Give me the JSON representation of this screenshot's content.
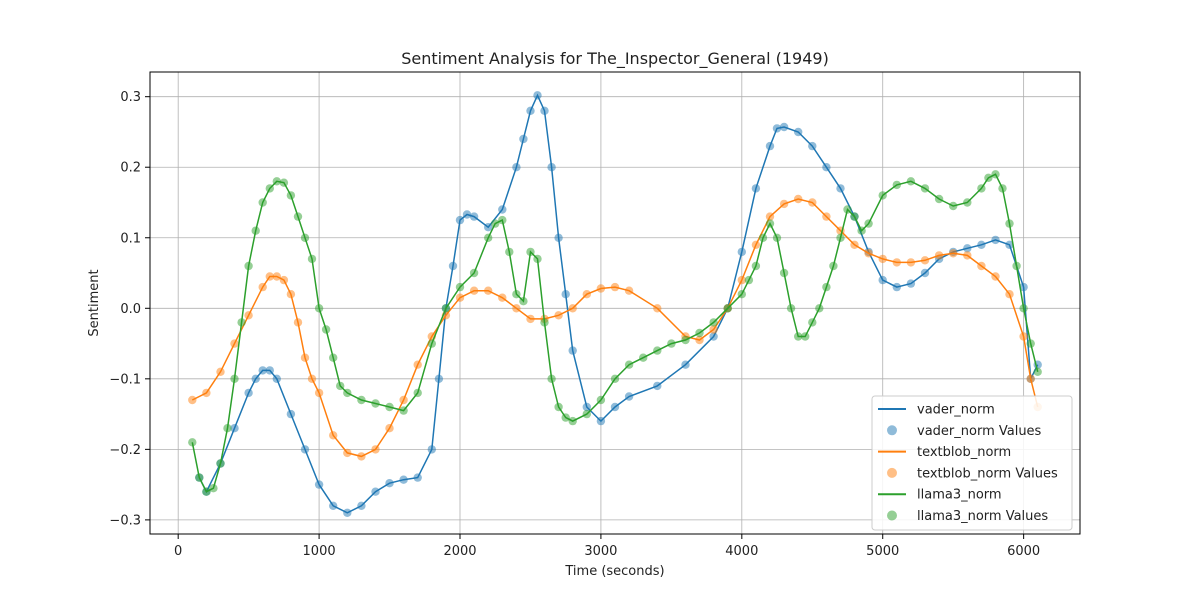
{
  "chart_data": {
    "type": "line",
    "title": "Sentiment Analysis for The_Inspector_General (1949)",
    "xlabel": "Time (seconds)",
    "ylabel": "Sentiment",
    "xlim": [
      -200,
      6400
    ],
    "ylim": [
      -0.32,
      0.335
    ],
    "x_ticks": [
      0,
      1000,
      2000,
      3000,
      4000,
      5000,
      6000
    ],
    "y_ticks": [
      -0.3,
      -0.2,
      -0.1,
      0.0,
      0.1,
      0.2,
      0.3
    ],
    "y_tick_labels": [
      "−0.3",
      "−0.2",
      "−0.1",
      "0.0",
      "0.1",
      "0.2",
      "0.3"
    ],
    "grid": true,
    "legend_position": "bottom-right",
    "legend_entries": [
      {
        "label": "vader_norm",
        "kind": "line",
        "color": "#1f77b4"
      },
      {
        "label": "vader_norm Values",
        "kind": "marker",
        "color": "#1f77b4"
      },
      {
        "label": "textblob_norm",
        "kind": "line",
        "color": "#ff7f0e"
      },
      {
        "label": "textblob_norm Values",
        "kind": "marker",
        "color": "#ff7f0e"
      },
      {
        "label": "llama3_norm",
        "kind": "line",
        "color": "#2ca02c"
      },
      {
        "label": "llama3_norm Values",
        "kind": "marker",
        "color": "#2ca02c"
      }
    ],
    "series": [
      {
        "name": "vader_norm",
        "color": "#1f77b4",
        "x": [
          150,
          200,
          300,
          400,
          500,
          550,
          600,
          650,
          700,
          800,
          900,
          1000,
          1100,
          1200,
          1300,
          1400,
          1500,
          1600,
          1700,
          1800,
          1850,
          1900,
          1950,
          2000,
          2050,
          2100,
          2200,
          2300,
          2400,
          2450,
          2500,
          2550,
          2600,
          2650,
          2700,
          2750,
          2800,
          2900,
          3000,
          3100,
          3200,
          3400,
          3600,
          3800,
          3900,
          4000,
          4100,
          4200,
          4250,
          4300,
          4400,
          4500,
          4600,
          4700,
          4800,
          4900,
          5000,
          5100,
          5200,
          5300,
          5400,
          5500,
          5600,
          5700,
          5800,
          5900,
          6000,
          6050,
          6100
        ],
        "y": [
          -0.24,
          -0.26,
          -0.22,
          -0.17,
          -0.12,
          -0.1,
          -0.088,
          -0.088,
          -0.1,
          -0.15,
          -0.2,
          -0.25,
          -0.28,
          -0.29,
          -0.28,
          -0.26,
          -0.248,
          -0.243,
          -0.24,
          -0.2,
          -0.1,
          0.0,
          0.06,
          0.125,
          0.133,
          0.13,
          0.115,
          0.14,
          0.2,
          0.24,
          0.28,
          0.302,
          0.28,
          0.2,
          0.1,
          0.02,
          -0.06,
          -0.14,
          -0.16,
          -0.14,
          -0.125,
          -0.11,
          -0.08,
          -0.04,
          0.0,
          0.08,
          0.17,
          0.23,
          0.255,
          0.257,
          0.25,
          0.23,
          0.2,
          0.17,
          0.13,
          0.08,
          0.04,
          0.03,
          0.035,
          0.05,
          0.07,
          0.08,
          0.085,
          0.09,
          0.097,
          0.09,
          0.03,
          -0.1,
          -0.08
        ]
      },
      {
        "name": "textblob_norm",
        "color": "#ff7f0e",
        "x": [
          100,
          200,
          300,
          400,
          500,
          600,
          650,
          700,
          750,
          800,
          850,
          900,
          950,
          1000,
          1100,
          1200,
          1300,
          1400,
          1500,
          1600,
          1700,
          1800,
          1900,
          2000,
          2100,
          2200,
          2300,
          2400,
          2500,
          2600,
          2700,
          2800,
          2900,
          3000,
          3100,
          3200,
          3400,
          3600,
          3700,
          3800,
          3900,
          4000,
          4100,
          4200,
          4300,
          4400,
          4500,
          4600,
          4700,
          4800,
          4900,
          5000,
          5100,
          5200,
          5300,
          5400,
          5500,
          5600,
          5700,
          5800,
          5900,
          6000,
          6050,
          6100
        ],
        "y": [
          -0.13,
          -0.12,
          -0.09,
          -0.05,
          -0.01,
          0.03,
          0.045,
          0.045,
          0.04,
          0.02,
          -0.02,
          -0.07,
          -0.1,
          -0.12,
          -0.18,
          -0.205,
          -0.21,
          -0.2,
          -0.17,
          -0.13,
          -0.08,
          -0.04,
          -0.01,
          0.015,
          0.025,
          0.025,
          0.015,
          0.0,
          -0.015,
          -0.015,
          -0.01,
          0.0,
          0.02,
          0.028,
          0.03,
          0.025,
          0.0,
          -0.04,
          -0.045,
          -0.03,
          0.0,
          0.04,
          0.09,
          0.13,
          0.148,
          0.155,
          0.15,
          0.13,
          0.11,
          0.09,
          0.078,
          0.07,
          0.065,
          0.065,
          0.068,
          0.075,
          0.078,
          0.075,
          0.06,
          0.045,
          0.02,
          -0.04,
          -0.1,
          -0.14
        ]
      },
      {
        "name": "llama3_norm",
        "color": "#2ca02c",
        "x": [
          100,
          150,
          200,
          250,
          300,
          350,
          400,
          450,
          500,
          550,
          600,
          650,
          700,
          750,
          800,
          850,
          900,
          950,
          1000,
          1050,
          1100,
          1150,
          1200,
          1300,
          1400,
          1500,
          1600,
          1700,
          1800,
          1900,
          2000,
          2100,
          2200,
          2250,
          2300,
          2350,
          2400,
          2450,
          2500,
          2550,
          2600,
          2650,
          2700,
          2750,
          2800,
          2900,
          3000,
          3100,
          3200,
          3300,
          3400,
          3500,
          3600,
          3700,
          3800,
          3900,
          4000,
          4050,
          4100,
          4150,
          4200,
          4250,
          4300,
          4350,
          4400,
          4450,
          4500,
          4550,
          4600,
          4650,
          4700,
          4750,
          4800,
          4850,
          4900,
          5000,
          5100,
          5200,
          5300,
          5400,
          5500,
          5600,
          5700,
          5750,
          5800,
          5850,
          5900,
          5950,
          6000,
          6050,
          6100
        ],
        "y": [
          -0.19,
          -0.24,
          -0.26,
          -0.255,
          -0.22,
          -0.17,
          -0.1,
          -0.02,
          0.06,
          0.11,
          0.15,
          0.17,
          0.18,
          0.178,
          0.16,
          0.13,
          0.1,
          0.07,
          0.0,
          -0.03,
          -0.07,
          -0.11,
          -0.12,
          -0.13,
          -0.135,
          -0.14,
          -0.145,
          -0.12,
          -0.05,
          0.0,
          0.03,
          0.05,
          0.1,
          0.12,
          0.125,
          0.08,
          0.02,
          0.01,
          0.08,
          0.07,
          -0.02,
          -0.1,
          -0.14,
          -0.155,
          -0.16,
          -0.15,
          -0.13,
          -0.1,
          -0.08,
          -0.07,
          -0.06,
          -0.05,
          -0.045,
          -0.035,
          -0.02,
          0.0,
          0.02,
          0.04,
          0.06,
          0.1,
          0.12,
          0.1,
          0.05,
          0.0,
          -0.04,
          -0.04,
          -0.02,
          0.0,
          0.03,
          0.06,
          0.1,
          0.14,
          0.13,
          0.11,
          0.12,
          0.16,
          0.175,
          0.18,
          0.17,
          0.155,
          0.145,
          0.15,
          0.17,
          0.185,
          0.19,
          0.17,
          0.12,
          0.06,
          0.0,
          -0.05,
          -0.09
        ]
      }
    ]
  }
}
